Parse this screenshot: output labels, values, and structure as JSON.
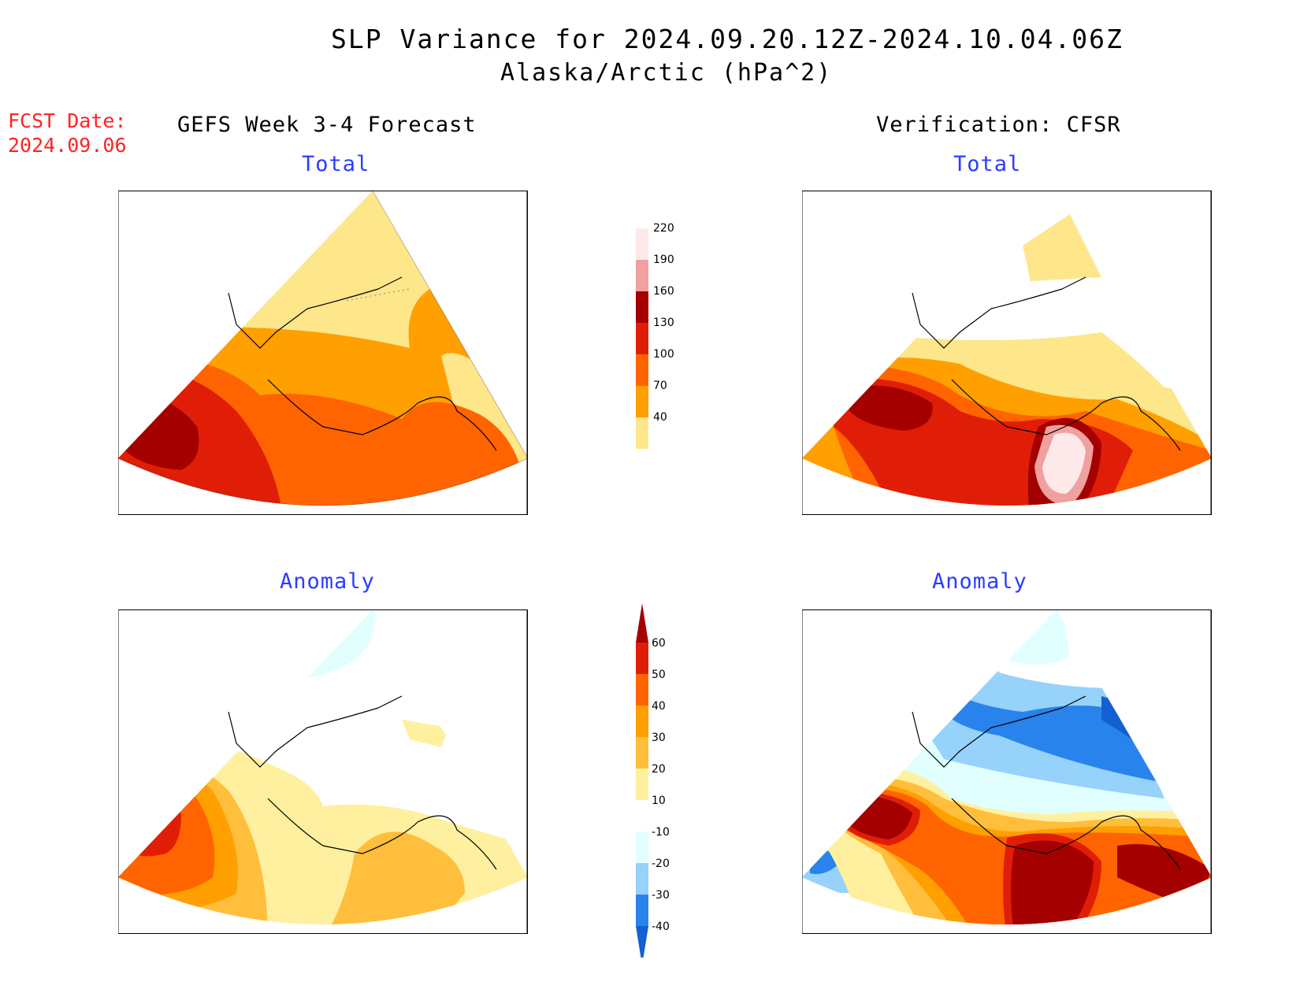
{
  "header": {
    "title": "SLP Variance for 2024.09.20.12Z-2024.10.04.06Z",
    "subtitle": "Alaska/Arctic (hPa^2)",
    "fcst_label": "FCST Date:",
    "fcst_date": "2024.09.06"
  },
  "columns": {
    "left": "GEFS Week 3-4 Forecast",
    "right": "Verification: CFSR"
  },
  "panels": {
    "fcst_total": "Total",
    "fcst_anomaly": "Anomaly",
    "obs_total": "Total",
    "obs_anomaly": "Anomaly"
  },
  "total_scale": {
    "levels": [
      "40",
      "70",
      "100",
      "130",
      "160",
      "190",
      "220"
    ],
    "colors": [
      "#fee68a",
      "#ff9f00",
      "#ff6400",
      "#e01e08",
      "#a40000",
      "#f0a0a0",
      "#fde9e9"
    ]
  },
  "anomaly_scale": {
    "levels": [
      "-40",
      "-30",
      "-20",
      "-10",
      "10",
      "20",
      "30",
      "40",
      "50",
      "60"
    ],
    "colors": [
      "#1460d2",
      "#2884ec",
      "#96d2fa",
      "#e1ffff",
      "#ffffff",
      "#fff0a0",
      "#ffbe3c",
      "#ff9f00",
      "#ff6400",
      "#e01e08",
      "#a40000"
    ]
  }
}
